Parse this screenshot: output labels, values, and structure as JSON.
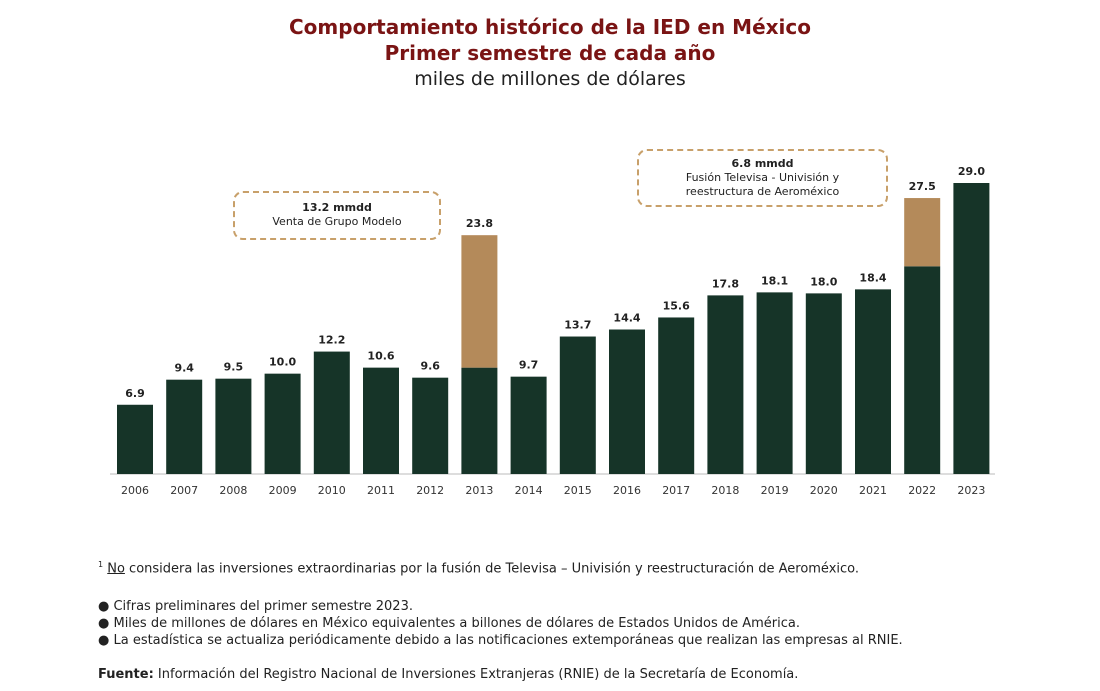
{
  "title": {
    "line1": "Comportamiento histórico de la IED en México",
    "line2": "Primer semestre de cada año",
    "line3": "miles de millones de dólares"
  },
  "colors": {
    "base": "#163428",
    "extra": "#b48a5a",
    "title": "#7a1414",
    "dash": "#c8a06a"
  },
  "chart_data": {
    "type": "bar",
    "stacked": true,
    "categories": [
      "2006",
      "2007",
      "2008",
      "2009",
      "2010",
      "2011",
      "2012",
      "2013",
      "2014",
      "2015",
      "2016",
      "2017",
      "2018",
      "2019",
      "2020",
      "2021",
      "2022",
      "2023"
    ],
    "series": [
      {
        "values": [
          6.9,
          9.4,
          9.5,
          10.0,
          12.2,
          10.6,
          9.6,
          10.6,
          9.7,
          13.7,
          14.4,
          15.6,
          17.8,
          18.1,
          18.0,
          18.4,
          20.7,
          29.0
        ]
      },
      {
        "values": [
          0,
          0,
          0,
          0,
          0,
          0,
          0,
          13.2,
          0,
          0,
          0,
          0,
          0,
          0,
          0,
          0,
          6.8,
          0
        ]
      }
    ],
    "totals": [
      "6.9",
      "9.4",
      "9.5",
      "10.0",
      "12.2",
      "10.6",
      "9.6",
      "23.8",
      "9.7",
      "13.7",
      "14.4",
      "15.6",
      "17.8",
      "18.1",
      "18.0",
      "18.4",
      "27.5",
      "29.0"
    ],
    "ylim": [
      0,
      29.0
    ],
    "grid": false,
    "annotations": [
      {
        "value": "13.2 mmdd",
        "text": "Venta de Grupo Modelo",
        "year": "2013"
      },
      {
        "value": "6.8 mmdd",
        "text": "Fusión Televisa - Univisión y reestructura de Aeroméxico",
        "year": "2022"
      }
    ]
  },
  "notes": {
    "footnote_mark": "1",
    "footnote_underlined": "No",
    "footnote_rest": " considera las inversiones extraordinarias por la fusión de Televisa – Univisión y reestructuración de Aeroméxico.",
    "bullets": [
      "● Cifras preliminares del primer semestre 2023.",
      "● Miles de millones de dólares en México equivalentes a billones de dólares de Estados Unidos de América.",
      "● La estadística se actualiza periódicamente debido a las notificaciones extemporáneas que realizan las empresas al RNIE."
    ],
    "source_label": "Fuente:",
    "source_text": " Información del Registro Nacional de Inversiones Extranjeras (RNIE) de la Secretaría de Economía."
  }
}
